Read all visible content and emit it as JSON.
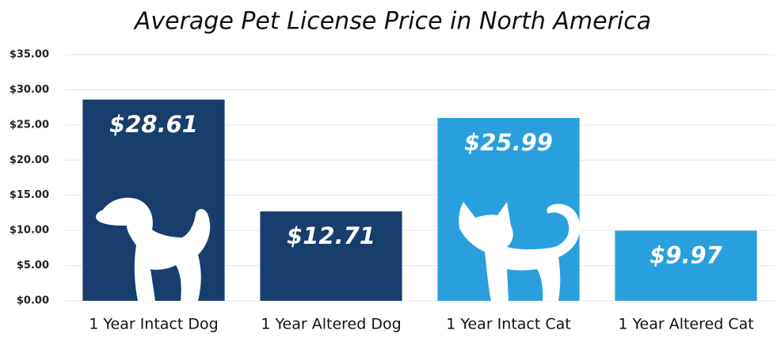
{
  "chart_data": {
    "type": "bar",
    "title": "Average Pet License Price in North America",
    "categories": [
      "1 Year Intact Dog",
      "1 Year Altered Dog",
      "1 Year Intact Cat",
      "1 Year Altered Cat"
    ],
    "values": [
      28.61,
      12.71,
      25.99,
      9.97
    ],
    "value_labels": [
      "$28.61",
      "$12.71",
      "$25.99",
      "$9.97"
    ],
    "colors": [
      "#173e6d",
      "#173e6d",
      "#29a0dd",
      "#29a0dd"
    ],
    "ylim": [
      0,
      35
    ],
    "yticks": [
      {
        "value": 0,
        "label": "$0.00"
      },
      {
        "value": 5,
        "label": "$5.00"
      },
      {
        "value": 10,
        "label": "$10.00"
      },
      {
        "value": 15,
        "label": "$15.00"
      },
      {
        "value": 20,
        "label": "$20.00"
      },
      {
        "value": 25,
        "label": "$25.00"
      },
      {
        "value": 30,
        "label": "$30.00"
      },
      {
        "value": 35,
        "label": "$35.00"
      }
    ],
    "grid": true
  }
}
